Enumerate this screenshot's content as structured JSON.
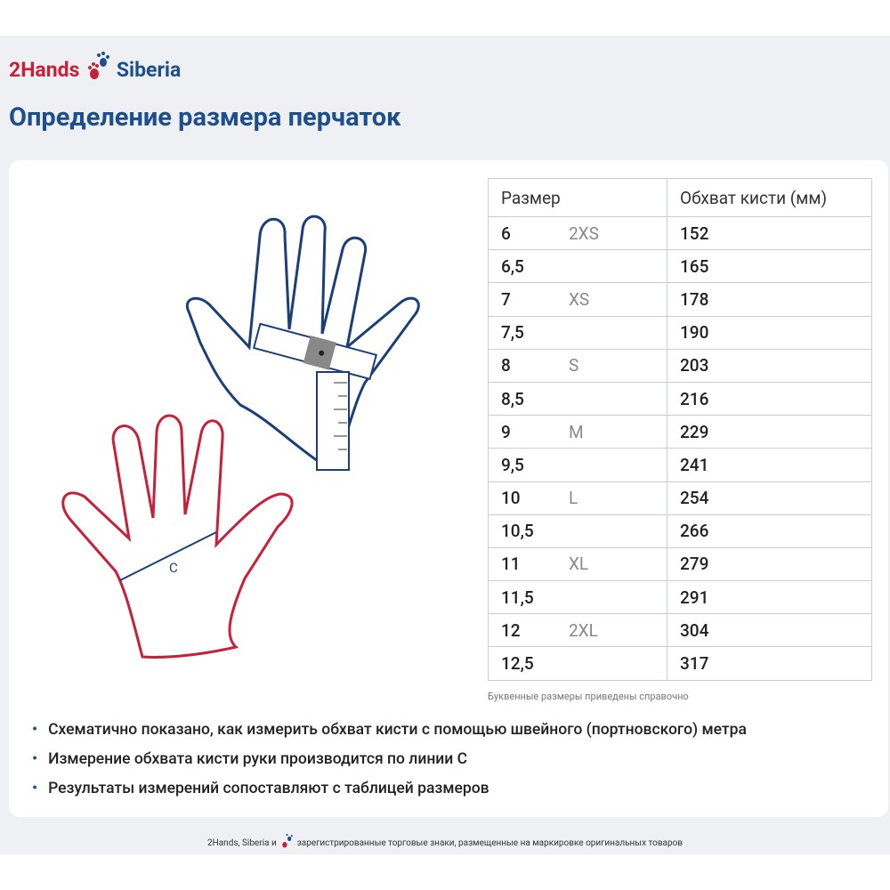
{
  "brand": {
    "left": "2Hands",
    "right": "Siberia"
  },
  "title": "Определение размера  перчаток",
  "diagram": {
    "line_label": "C"
  },
  "table": {
    "headers": [
      "Размер",
      "Обхват кисти (мм)"
    ],
    "rows": [
      {
        "size": "6",
        "letter": "2XS",
        "mm": 152
      },
      {
        "size": "6,5",
        "mm": 165
      },
      {
        "size": "7",
        "letter": "XS",
        "mm": 178
      },
      {
        "size": "7,5",
        "mm": 190
      },
      {
        "size": "8",
        "letter": "S",
        "mm": 203
      },
      {
        "size": "8,5",
        "mm": 216
      },
      {
        "size": "9",
        "letter": "M",
        "mm": 229
      },
      {
        "size": "9,5",
        "mm": 241
      },
      {
        "size": "10",
        "letter": "L",
        "mm": 254
      },
      {
        "size": "10,5",
        "mm": 266
      },
      {
        "size": "11",
        "letter": "XL",
        "mm": 279
      },
      {
        "size": "11,5",
        "mm": 291
      },
      {
        "size": "12",
        "letter": "2XL",
        "mm": 304
      },
      {
        "size": "12,5",
        "mm": 317
      }
    ]
  },
  "note": "Буквенные размеры приведены справочно",
  "bullets": [
    "Схематично показано, как измерить обхват кисти с помощью швейного (портновского) метра",
    "Измерение обхвата кисти руки производится по линии С",
    "Результаты измерений сопоставляют с таблицей размеров"
  ],
  "footer": {
    "before": "2Hands, Siberia и",
    "after": "зарегистрированные торговые знаки, размещенные на маркировке оригинальных товаров"
  }
}
